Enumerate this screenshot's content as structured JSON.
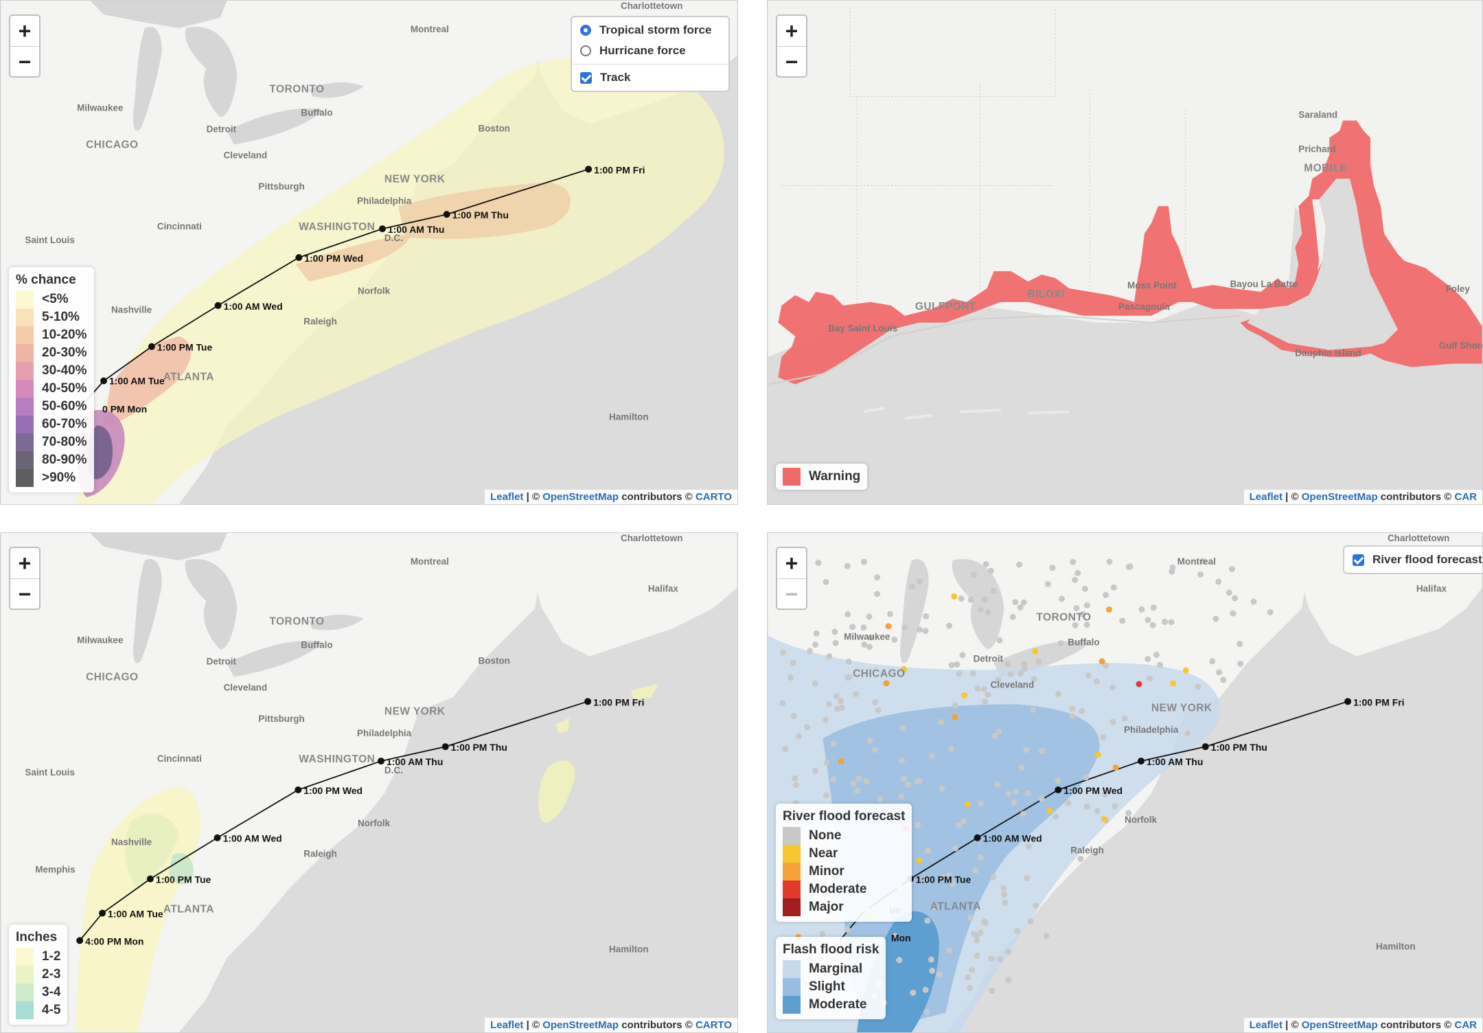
{
  "zoom": {
    "in": "+",
    "out": "−"
  },
  "attribution": {
    "leaflet": "Leaflet",
    "sep": " | © ",
    "osm": "OpenStreetMap",
    "contrib": " contributors © ",
    "carto": "CARTO",
    "carto_cut": "CAR"
  },
  "cities": {
    "montreal": "Montreal",
    "charlottetown": "Charlottetown",
    "toronto": "TORONTO",
    "buffalo": "Buffalo",
    "milwaukee": "Milwaukee",
    "detroit": "Detroit",
    "chicago": "CHICAGO",
    "cleveland": "Cleveland",
    "boston": "Boston",
    "pittsburgh": "Pittsburgh",
    "newyork": "NEW YORK",
    "philadelphia": "Philadelphia",
    "cincinnati": "Cincinnati",
    "washington": "WASHINGTON",
    "dc": "D.C.",
    "saintlouis": "Saint Louis",
    "nashville": "Nashville",
    "norfolk": "Norfolk",
    "raleigh": "Raleigh",
    "atlanta": "ATLANTA",
    "hamilton": "Hamilton",
    "halifax": "Halifax",
    "memphis": "Memphis"
  },
  "gulf_places": {
    "saraland": "Saraland",
    "prichard": "Prichard",
    "mobile": "MOBILE",
    "gulfport": "GULFPORT",
    "biloxi": "BILOXI",
    "mosspoint": "Moss Point",
    "bayoulabatre": "Bayou La Batre",
    "pascagoula": "Pascagoula",
    "baystlouis": "Bay Saint Louis",
    "foley": "Foley",
    "dauphin": "Dauphin Island",
    "gulfshores": "Gulf Shores"
  },
  "track_times": [
    "4:00 PM Mon",
    "1:00 AM Tue",
    "1:00 PM Tue",
    "1:00 AM Wed",
    "1:00 PM Wed",
    "1:00 AM Thu",
    "1:00 PM Thu",
    "1:00 PM Fri"
  ],
  "panel1": {
    "controls": {
      "option1": "Tropical storm force",
      "option2": "Hurricane force",
      "track": "Track"
    },
    "partial_label": "0 PM Mon",
    "legend": {
      "title": "% chance",
      "items": [
        {
          "label": "<5%",
          "color": "#fbf8d2"
        },
        {
          "label": "5-10%",
          "color": "#f9e2b8"
        },
        {
          "label": "10-20%",
          "color": "#f5cca8"
        },
        {
          "label": "20-30%",
          "color": "#eeb5a6"
        },
        {
          "label": "30-40%",
          "color": "#e59faf"
        },
        {
          "label": "40-50%",
          "color": "#d68abc"
        },
        {
          "label": "50-60%",
          "color": "#b97bc1"
        },
        {
          "label": "60-70%",
          "color": "#9770b4"
        },
        {
          "label": "70-80%",
          "color": "#7b6996"
        },
        {
          "label": "80-90%",
          "color": "#6a6474"
        },
        {
          "label": ">90%",
          "color": "#5e5e5e"
        }
      ]
    }
  },
  "panel2": {
    "legend": {
      "label": "Warning",
      "color": "#f06a6a"
    }
  },
  "panel3": {
    "legend": {
      "title": "Inches",
      "items": [
        {
          "label": "1-2",
          "color": "#fbf8d2"
        },
        {
          "label": "2-3",
          "color": "#eaf3c4"
        },
        {
          "label": "3-4",
          "color": "#cdeacb"
        },
        {
          "label": "4-5",
          "color": "#a9ddd4"
        }
      ]
    }
  },
  "panel4": {
    "control": {
      "label": "River flood forecast"
    },
    "partial_label": "Mon",
    "partial_label2": "ue",
    "river_legend": {
      "title": "River flood forecast",
      "items": [
        {
          "label": "None",
          "color": "#c8c8c8"
        },
        {
          "label": "Near",
          "color": "#f6c72e"
        },
        {
          "label": "Minor",
          "color": "#f3a23a"
        },
        {
          "label": "Moderate",
          "color": "#e2392c"
        },
        {
          "label": "Major",
          "color": "#a31d1d"
        }
      ]
    },
    "flash_legend": {
      "title": "Flash flood risk",
      "items": [
        {
          "label": "Marginal",
          "color": "#c8d9ec"
        },
        {
          "label": "Slight",
          "color": "#99bde0"
        },
        {
          "label": "Moderate",
          "color": "#5d9fd0"
        }
      ]
    }
  }
}
